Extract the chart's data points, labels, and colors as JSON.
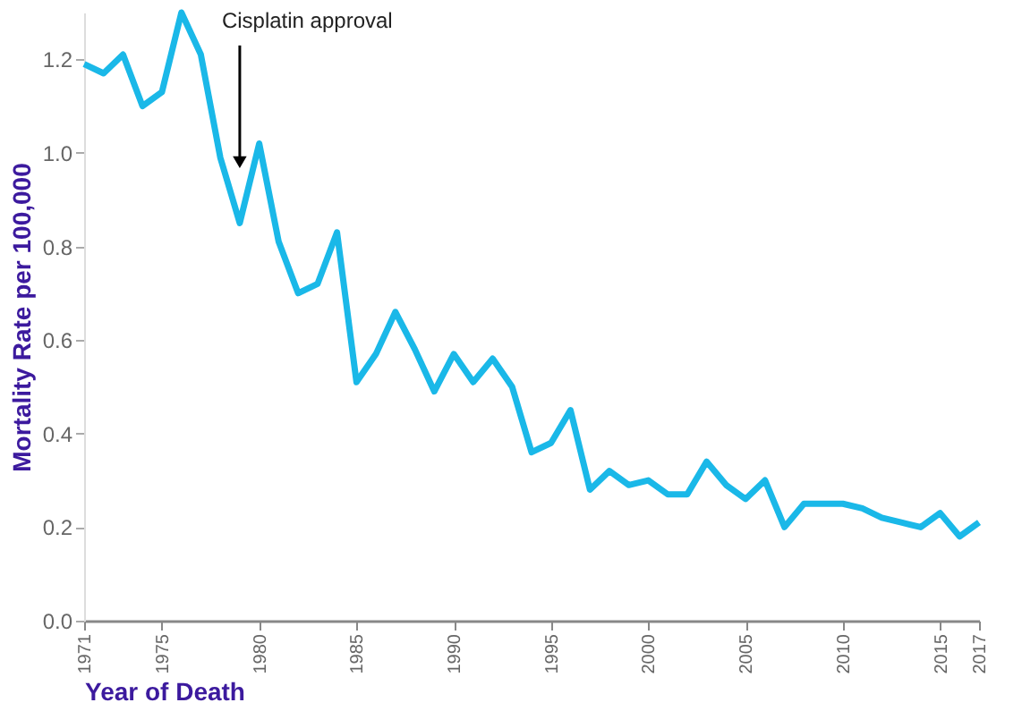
{
  "chart_data": {
    "type": "line",
    "xlabel": "Year of Death",
    "ylabel": "Mortality Rate per 100,000",
    "x": [
      1971,
      1972,
      1973,
      1974,
      1975,
      1976,
      1977,
      1978,
      1979,
      1980,
      1981,
      1982,
      1983,
      1984,
      1985,
      1986,
      1987,
      1988,
      1989,
      1990,
      1991,
      1992,
      1993,
      1994,
      1995,
      1996,
      1997,
      1998,
      1999,
      2000,
      2001,
      2002,
      2003,
      2004,
      2005,
      2006,
      2007,
      2008,
      2009,
      2010,
      2011,
      2012,
      2013,
      2014,
      2015,
      2016,
      2017
    ],
    "series": [
      {
        "color": "#1ab8e8",
        "values": [
          1.19,
          1.17,
          1.21,
          1.1,
          1.13,
          1.3,
          1.21,
          0.99,
          0.85,
          1.02,
          0.81,
          0.7,
          0.72,
          0.83,
          0.51,
          0.57,
          0.66,
          0.58,
          0.49,
          0.57,
          0.51,
          0.56,
          0.5,
          0.36,
          0.38,
          0.45,
          0.28,
          0.32,
          0.29,
          0.3,
          0.27,
          0.27,
          0.34,
          0.29,
          0.26,
          0.3,
          0.2,
          0.25,
          0.25,
          0.25,
          0.24,
          0.22,
          0.21,
          0.2,
          0.23,
          0.18,
          0.21
        ]
      }
    ],
    "xlim": [
      1971,
      2017
    ],
    "xticks": [
      1971,
      1975,
      1980,
      1985,
      1990,
      1995,
      2000,
      2005,
      2010,
      2015,
      2017
    ],
    "ylim": [
      0,
      1.3
    ],
    "yticks": [
      {
        "value": 0,
        "label": "0.0"
      },
      0.2,
      0.4,
      0.6,
      0.8,
      {
        "value": 1,
        "label": "1.0"
      },
      1.2
    ],
    "annotations": [
      {
        "text": "Cisplatin approval",
        "x": 1979,
        "y": 0.98
      }
    ],
    "grid": false,
    "marker": "none",
    "line_style": "solid"
  }
}
